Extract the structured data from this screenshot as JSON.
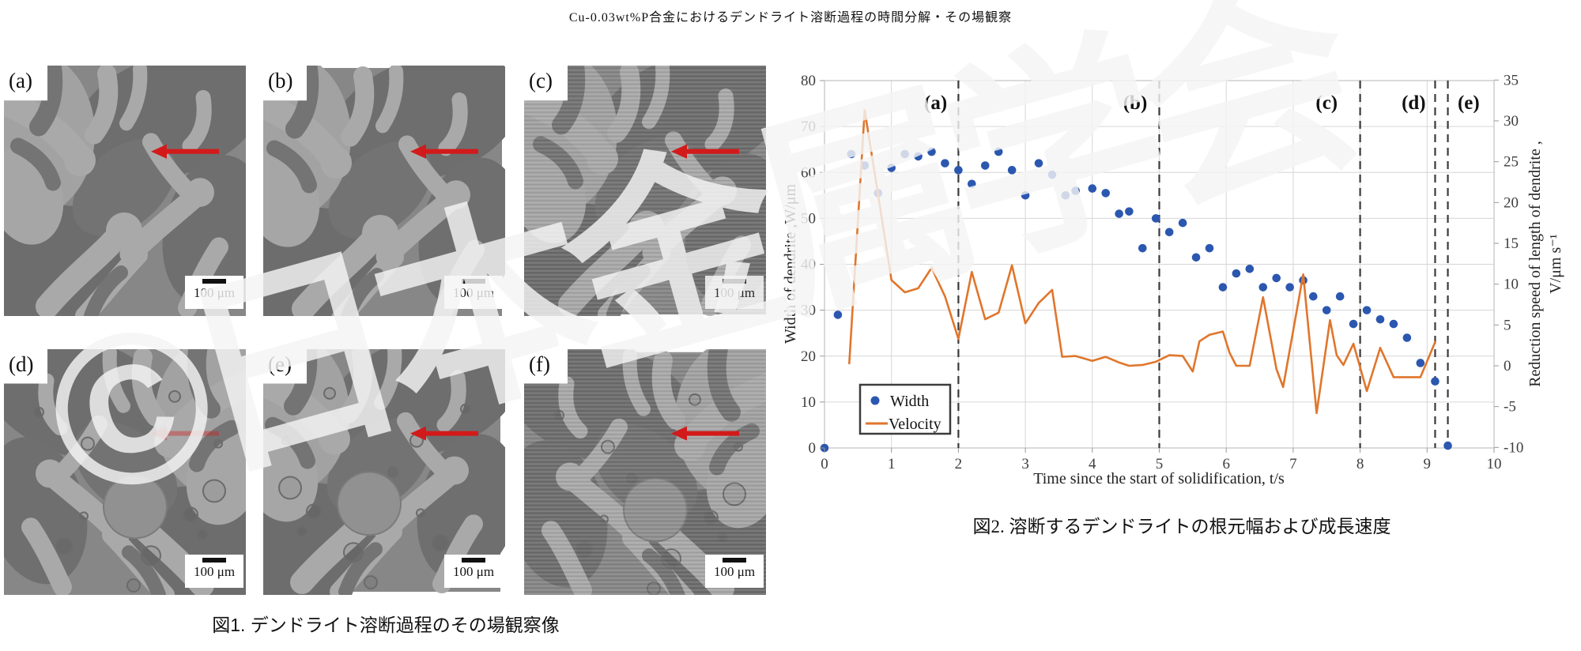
{
  "page": {
    "title": "Cu-0.03wt%P合金におけるデンドライト溶断過程の時間分解・その場観察"
  },
  "watermark": {
    "text": "©日本金属学会"
  },
  "figure1": {
    "caption": "図1. デンドライト溶断過程のその場観察像",
    "scale_label": "100 μm",
    "panels": [
      {
        "label": "(a)"
      },
      {
        "label": "(b)"
      },
      {
        "label": "(c)"
      },
      {
        "label": "(d)"
      },
      {
        "label": "(e)"
      },
      {
        "label": "(f)"
      }
    ]
  },
  "figure2": {
    "caption": "図2. 溶断するデンドライトの根元幅および成長速度"
  },
  "chart_data": {
    "type": "scatter+line",
    "title": "",
    "xlabel": "Time since the start of solidification,  t/s",
    "ylabel_left": "Width of dendrite ,W/μm",
    "ylabel_right_line1": "Reduction speed of length of dendrite ,",
    "ylabel_right_line2": "V/μm s⁻¹",
    "xlim": [
      0,
      10
    ],
    "ylim_left": [
      0,
      80
    ],
    "ylim_right": [
      -10,
      35
    ],
    "xticks": [
      0,
      1,
      2,
      3,
      4,
      5,
      6,
      7,
      8,
      9,
      10
    ],
    "yticks_left": [
      0,
      10,
      20,
      30,
      40,
      50,
      60,
      70,
      80
    ],
    "yticks_right": [
      -10,
      -5,
      0,
      5,
      10,
      15,
      20,
      25,
      30,
      35
    ],
    "grid": true,
    "legend": {
      "position": "inside-bottom-left",
      "entries": [
        {
          "label": "Width",
          "type": "point",
          "color": "#2b57b0"
        },
        {
          "label": "Velocity",
          "type": "line",
          "color": "#e0762c"
        }
      ]
    },
    "phase_lines": [
      {
        "label": "(a)",
        "t": 2.0,
        "label_t": 1.66
      },
      {
        "label": "(b)",
        "t": 5.0,
        "label_t": 4.64
      },
      {
        "label": "(c)",
        "t": 8.0,
        "label_t": 7.5
      },
      {
        "label": "(d)",
        "t": 9.12,
        "label_t": 8.8
      },
      {
        "label": "(e)",
        "t": 9.31,
        "label_t": 9.62
      }
    ],
    "series": [
      {
        "name": "Width",
        "axis": "left",
        "type": "scatter",
        "color": "#2b57b0",
        "points": [
          [
            0,
            0
          ],
          [
            0.2,
            29
          ],
          [
            0.4,
            64
          ],
          [
            0.6,
            61.5
          ],
          [
            0.8,
            55.5
          ],
          [
            1.0,
            61
          ],
          [
            1.2,
            64
          ],
          [
            1.4,
            63.5
          ],
          [
            1.6,
            64.5
          ],
          [
            1.8,
            62
          ],
          [
            2.0,
            60.5
          ],
          [
            2.2,
            57.5
          ],
          [
            2.4,
            61.5
          ],
          [
            2.6,
            64.5
          ],
          [
            2.8,
            60.5
          ],
          [
            3.0,
            55
          ],
          [
            3.2,
            62
          ],
          [
            3.4,
            59.5
          ],
          [
            3.6,
            55
          ],
          [
            3.75,
            56
          ],
          [
            4.0,
            56.5
          ],
          [
            4.2,
            55.5
          ],
          [
            4.4,
            51
          ],
          [
            4.55,
            51.5
          ],
          [
            4.75,
            43.5
          ],
          [
            4.95,
            50
          ],
          [
            5.15,
            47
          ],
          [
            5.35,
            49
          ],
          [
            5.55,
            41.5
          ],
          [
            5.75,
            43.5
          ],
          [
            5.95,
            35
          ],
          [
            6.15,
            38
          ],
          [
            6.35,
            39
          ],
          [
            6.55,
            35
          ],
          [
            6.75,
            37
          ],
          [
            6.95,
            35
          ],
          [
            7.15,
            36.5
          ],
          [
            7.3,
            33
          ],
          [
            7.5,
            30
          ],
          [
            7.7,
            33
          ],
          [
            7.9,
            27
          ],
          [
            8.1,
            30
          ],
          [
            8.3,
            28
          ],
          [
            8.5,
            27
          ],
          [
            8.7,
            24
          ],
          [
            8.9,
            18.5
          ],
          [
            9.12,
            14.5
          ],
          [
            9.31,
            0.5
          ]
        ]
      },
      {
        "name": "Velocity",
        "axis": "right",
        "type": "line",
        "color": "#e0762c",
        "points": [
          [
            0.37,
            0.3
          ],
          [
            0.6,
            31.3
          ],
          [
            0.8,
            21
          ],
          [
            1.0,
            10.5
          ],
          [
            1.2,
            9
          ],
          [
            1.4,
            9.5
          ],
          [
            1.6,
            12
          ],
          [
            1.8,
            8.5
          ],
          [
            2.0,
            3.3
          ],
          [
            2.2,
            11.5
          ],
          [
            2.4,
            5.7
          ],
          [
            2.6,
            6.5
          ],
          [
            2.8,
            12.3
          ],
          [
            3.0,
            5.2
          ],
          [
            3.2,
            7.7
          ],
          [
            3.4,
            9.3
          ],
          [
            3.55,
            1.1
          ],
          [
            3.75,
            1.2
          ],
          [
            4.0,
            0.6
          ],
          [
            4.2,
            1.1
          ],
          [
            4.4,
            0.4
          ],
          [
            4.55,
            0
          ],
          [
            4.75,
            0.1
          ],
          [
            4.95,
            0.5
          ],
          [
            5.15,
            1.3
          ],
          [
            5.35,
            1.2
          ],
          [
            5.5,
            -0.7
          ],
          [
            5.6,
            3
          ],
          [
            5.75,
            3.8
          ],
          [
            5.95,
            4.2
          ],
          [
            6.05,
            1.6
          ],
          [
            6.15,
            0
          ],
          [
            6.35,
            0
          ],
          [
            6.55,
            8.4
          ],
          [
            6.75,
            -0.4
          ],
          [
            6.85,
            -2.6
          ],
          [
            7.15,
            11.2
          ],
          [
            7.35,
            -5.8
          ],
          [
            7.55,
            5.6
          ],
          [
            7.65,
            1.3
          ],
          [
            7.75,
            0.1
          ],
          [
            7.9,
            2.7
          ],
          [
            8.1,
            -3.1
          ],
          [
            8.3,
            2.2
          ],
          [
            8.5,
            -1.4
          ],
          [
            8.9,
            -1.4
          ],
          [
            9.12,
            2.9
          ]
        ]
      }
    ]
  }
}
